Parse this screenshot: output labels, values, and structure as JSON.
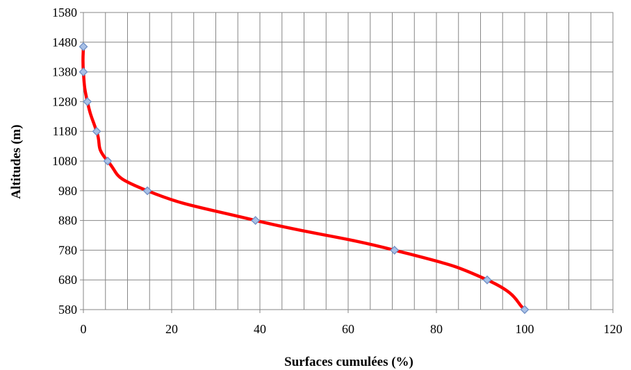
{
  "chart_data": {
    "type": "line",
    "title": "",
    "xlabel": "Surfaces cumulées (%)",
    "ylabel": "Altitudes (m)",
    "xlim": [
      0,
      120
    ],
    "ylim": [
      580,
      1580
    ],
    "x_ticks": [
      0,
      20,
      40,
      60,
      80,
      100,
      120
    ],
    "y_ticks": [
      580,
      680,
      780,
      880,
      980,
      1080,
      1180,
      1280,
      1380,
      1480,
      1580
    ],
    "grid": true,
    "legend": "none",
    "series": [
      {
        "x": [
          0,
          0,
          0.9,
          3.0,
          5.5,
          14.5,
          39.0,
          70.5,
          91.5,
          100
        ],
        "y": [
          1465,
          1380,
          1280,
          1180,
          1080,
          980,
          880,
          780,
          680,
          580
        ],
        "line_color": "#ff0000",
        "marker": "diamond",
        "marker_fill": "#a8c0e6",
        "marker_stroke": "#6f8fc4"
      }
    ]
  }
}
